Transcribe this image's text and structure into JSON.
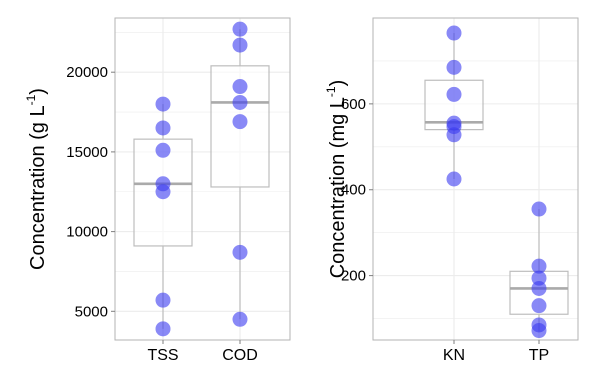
{
  "chart_data": [
    {
      "type": "box",
      "ylabel": "Concentration (g  L",
      "ylabel_exponent": "-1",
      "ylabel_close": ")",
      "ylim": [
        3200,
        23400
      ],
      "y_ticks": [
        5000,
        10000,
        15000,
        20000
      ],
      "grid": true,
      "categories": [
        "TSS",
        "COD"
      ],
      "series": [
        {
          "category": "TSS",
          "box": {
            "q1": 9100,
            "median": 13000,
            "q3": 15800,
            "whisker_low": 3900,
            "whisker_high": 18000
          },
          "points": [
            18000,
            16500,
            15100,
            13000,
            12500,
            5700,
            3900
          ]
        },
        {
          "category": "COD",
          "box": {
            "q1": 12800,
            "median": 18100,
            "q3": 20400,
            "whisker_low": 4500,
            "whisker_high": 22700
          },
          "points": [
            22700,
            21700,
            19100,
            18100,
            16900,
            8700,
            4500
          ]
        }
      ],
      "colors": {
        "point": "#3a3af0",
        "box": "#bdbdbd",
        "median": "#aaaaaa",
        "grid": "#ececec",
        "panel_border": "#b3b3b3"
      }
    },
    {
      "type": "box",
      "ylabel": "Concentration (mg  L",
      "ylabel_exponent": "-1",
      "ylabel_close": ")",
      "ylim": [
        50,
        800
      ],
      "y_ticks": [
        200,
        400,
        600
      ],
      "grid": true,
      "categories": [
        "KN",
        "TP"
      ],
      "series": [
        {
          "category": "KN",
          "box": {
            "q1": 540,
            "median": 557,
            "q3": 655,
            "whisker_low": 425,
            "whisker_high": 765
          },
          "points": [
            765,
            685,
            622,
            555,
            547,
            528,
            425
          ]
        },
        {
          "category": "TP",
          "box": {
            "q1": 110,
            "median": 170,
            "q3": 210,
            "whisker_low": 70,
            "whisker_high": 355
          },
          "points": [
            355,
            222,
            194,
            170,
            130,
            85,
            72
          ]
        }
      ],
      "colors": {
        "point": "#3a3af0",
        "box": "#bdbdbd",
        "median": "#aaaaaa",
        "grid": "#ececec",
        "panel_border": "#b3b3b3"
      }
    }
  ]
}
